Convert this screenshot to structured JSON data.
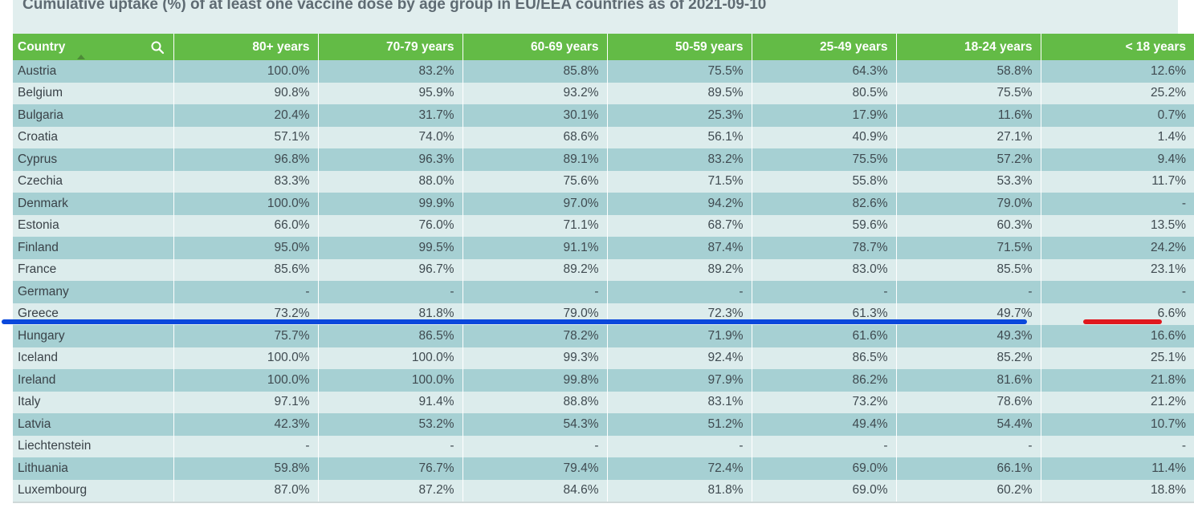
{
  "title": "Cumulative uptake (%) of at least one vaccine dose by age group in EU/EEA countries as of 2021-09-10",
  "columns": [
    "Country",
    "80+ years",
    "70-79 years",
    "60-69 years",
    "50-59 years",
    "25-49 years",
    "18-24 years",
    "< 18 years"
  ],
  "icons": {
    "search": "search-icon",
    "sort": "sort-ascending-icon"
  },
  "colors": {
    "header": "#63bb46",
    "row_dark": "#a6d0d3",
    "row_light": "#dcecec",
    "annotation_blue": "#0a48dc",
    "annotation_red": "#e0181e"
  },
  "rows": [
    [
      "Austria",
      "100.0%",
      "83.2%",
      "85.8%",
      "75.5%",
      "64.3%",
      "58.8%",
      "12.6%"
    ],
    [
      "Belgium",
      "90.8%",
      "95.9%",
      "93.2%",
      "89.5%",
      "80.5%",
      "75.5%",
      "25.2%"
    ],
    [
      "Bulgaria",
      "20.4%",
      "31.7%",
      "30.1%",
      "25.3%",
      "17.9%",
      "11.6%",
      "0.7%"
    ],
    [
      "Croatia",
      "57.1%",
      "74.0%",
      "68.6%",
      "56.1%",
      "40.9%",
      "27.1%",
      "1.4%"
    ],
    [
      "Cyprus",
      "96.8%",
      "96.3%",
      "89.1%",
      "83.2%",
      "75.5%",
      "57.2%",
      "9.4%"
    ],
    [
      "Czechia",
      "83.3%",
      "88.0%",
      "75.6%",
      "71.5%",
      "55.8%",
      "53.3%",
      "11.7%"
    ],
    [
      "Denmark",
      "100.0%",
      "99.9%",
      "97.0%",
      "94.2%",
      "82.6%",
      "79.0%",
      "-"
    ],
    [
      "Estonia",
      "66.0%",
      "76.0%",
      "71.1%",
      "68.7%",
      "59.6%",
      "60.3%",
      "13.5%"
    ],
    [
      "Finland",
      "95.0%",
      "99.5%",
      "91.1%",
      "87.4%",
      "78.7%",
      "71.5%",
      "24.2%"
    ],
    [
      "France",
      "85.6%",
      "96.7%",
      "89.2%",
      "89.2%",
      "83.0%",
      "85.5%",
      "23.1%"
    ],
    [
      "Germany",
      "-",
      "-",
      "-",
      "-",
      "-",
      "-",
      "-"
    ],
    [
      "Greece",
      "73.2%",
      "81.8%",
      "79.0%",
      "72.3%",
      "61.3%",
      "49.7%",
      "6.6%"
    ],
    [
      "Hungary",
      "75.7%",
      "86.5%",
      "78.2%",
      "71.9%",
      "61.6%",
      "49.3%",
      "16.6%"
    ],
    [
      "Iceland",
      "100.0%",
      "100.0%",
      "99.3%",
      "92.4%",
      "86.5%",
      "85.2%",
      "25.1%"
    ],
    [
      "Ireland",
      "100.0%",
      "100.0%",
      "99.8%",
      "97.9%",
      "86.2%",
      "81.6%",
      "21.8%"
    ],
    [
      "Italy",
      "97.1%",
      "91.4%",
      "88.8%",
      "83.1%",
      "73.2%",
      "78.6%",
      "21.2%"
    ],
    [
      "Latvia",
      "42.3%",
      "53.2%",
      "54.3%",
      "51.2%",
      "49.4%",
      "54.4%",
      "10.7%"
    ],
    [
      "Liechtenstein",
      "-",
      "-",
      "-",
      "-",
      "-",
      "-",
      "-"
    ],
    [
      "Lithuania",
      "59.8%",
      "76.7%",
      "79.4%",
      "72.4%",
      "69.0%",
      "66.1%",
      "11.4%"
    ],
    [
      "Luxembourg",
      "87.0%",
      "87.2%",
      "84.6%",
      "81.8%",
      "69.0%",
      "60.2%",
      "18.8%"
    ]
  ]
}
